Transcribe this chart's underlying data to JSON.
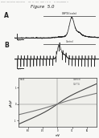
{
  "header_text": "Patent Application Publication    Feb. 21, 2019  Sheet 1 of 12    US 2019/0000000 A1",
  "figure_title": "Figure  5.0",
  "panel_a_label": "A",
  "panel_b_label": "B",
  "panel_a_annot": "BAPTA loaded",
  "panel_b_annot": "Control",
  "background": "#f8f8f6",
  "trace_color": "#2a2a2a",
  "inset_bg": "#f0f0ec",
  "inset_border": "#555555",
  "line1_color": "#444444",
  "line2_color": "#777777",
  "header_color": "#888888"
}
